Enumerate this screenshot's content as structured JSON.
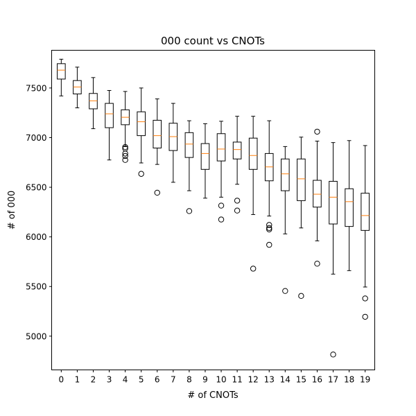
{
  "chart_data": {
    "type": "box",
    "title": "000 count vs CNOTs",
    "xlabel": "# of CNOTs",
    "ylabel": "# of 000",
    "categories": [
      "0",
      "1",
      "2",
      "3",
      "4",
      "5",
      "6",
      "7",
      "8",
      "9",
      "10",
      "11",
      "12",
      "13",
      "14",
      "15",
      "16",
      "17",
      "18",
      "19"
    ],
    "yticks": [
      5000,
      5500,
      6000,
      6500,
      7000,
      7500
    ],
    "ylim": [
      4660,
      7880
    ],
    "grid": false,
    "colors": {
      "box": "#000000",
      "median": "#ff7f0e",
      "outlier": "#000000"
    },
    "boxes": [
      {
        "whisker_low": 7420,
        "q1": 7590,
        "median": 7680,
        "q3": 7745,
        "whisker_high": 7790,
        "outliers": []
      },
      {
        "whisker_low": 7300,
        "q1": 7440,
        "median": 7510,
        "q3": 7575,
        "whisker_high": 7710,
        "outliers": []
      },
      {
        "whisker_low": 7090,
        "q1": 7290,
        "median": 7370,
        "q3": 7445,
        "whisker_high": 7605,
        "outliers": []
      },
      {
        "whisker_low": 6775,
        "q1": 7100,
        "median": 7240,
        "q3": 7345,
        "whisker_high": 7475,
        "outliers": []
      },
      {
        "whisker_low": 6910,
        "q1": 7130,
        "median": 7205,
        "q3": 7280,
        "whisker_high": 7465,
        "outliers": [
          6905,
          6890,
          6840,
          6815,
          6775
        ]
      },
      {
        "whisker_low": 6745,
        "q1": 7020,
        "median": 7160,
        "q3": 7260,
        "whisker_high": 7500,
        "outliers": [
          6635
        ]
      },
      {
        "whisker_low": 6730,
        "q1": 6895,
        "median": 7020,
        "q3": 7175,
        "whisker_high": 7390,
        "outliers": [
          6445
        ]
      },
      {
        "whisker_low": 6550,
        "q1": 6870,
        "median": 7010,
        "q3": 7145,
        "whisker_high": 7345,
        "outliers": []
      },
      {
        "whisker_low": 6465,
        "q1": 6800,
        "median": 6935,
        "q3": 7050,
        "whisker_high": 7170,
        "outliers": [
          6260
        ]
      },
      {
        "whisker_low": 6390,
        "q1": 6680,
        "median": 6840,
        "q3": 6940,
        "whisker_high": 7140,
        "outliers": []
      },
      {
        "whisker_low": 6400,
        "q1": 6765,
        "median": 6885,
        "q3": 7040,
        "whisker_high": 7165,
        "outliers": [
          6315,
          6175
        ]
      },
      {
        "whisker_low": 6530,
        "q1": 6785,
        "median": 6880,
        "q3": 6955,
        "whisker_high": 7215,
        "outliers": [
          6365,
          6265
        ]
      },
      {
        "whisker_low": 6225,
        "q1": 6680,
        "median": 6820,
        "q3": 6995,
        "whisker_high": 7215,
        "outliers": [
          5680
        ]
      },
      {
        "whisker_low": 6210,
        "q1": 6565,
        "median": 6705,
        "q3": 6840,
        "whisker_high": 7170,
        "outliers": [
          6120,
          6090,
          6075,
          5920
        ]
      },
      {
        "whisker_low": 6030,
        "q1": 6465,
        "median": 6635,
        "q3": 6785,
        "whisker_high": 6910,
        "outliers": [
          5455
        ]
      },
      {
        "whisker_low": 6090,
        "q1": 6365,
        "median": 6585,
        "q3": 6785,
        "whisker_high": 7005,
        "outliers": [
          5405
        ]
      },
      {
        "whisker_low": 5960,
        "q1": 6300,
        "median": 6430,
        "q3": 6570,
        "whisker_high": 6965,
        "outliers": [
          7060,
          5730
        ]
      },
      {
        "whisker_low": 5625,
        "q1": 6130,
        "median": 6400,
        "q3": 6560,
        "whisker_high": 6950,
        "outliers": [
          4815
        ]
      },
      {
        "whisker_low": 5660,
        "q1": 6105,
        "median": 6355,
        "q3": 6485,
        "whisker_high": 6970,
        "outliers": []
      },
      {
        "whisker_low": 5495,
        "q1": 6065,
        "median": 6215,
        "q3": 6440,
        "whisker_high": 6920,
        "outliers": [
          5380,
          5195
        ]
      }
    ]
  }
}
